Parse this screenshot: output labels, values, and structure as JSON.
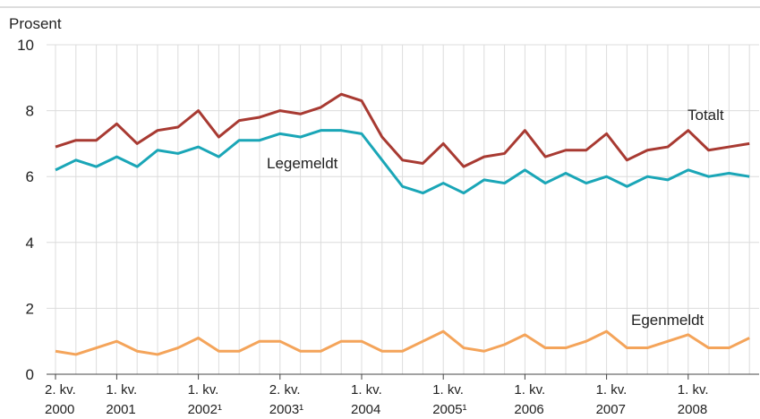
{
  "chart_data": {
    "type": "line",
    "y_label": "Prosent",
    "categories": [
      [
        "2. kv.",
        "2000"
      ],
      null,
      null,
      [
        "1. kv.",
        "2001"
      ],
      null,
      null,
      null,
      [
        "1. kv.",
        "2002¹"
      ],
      null,
      null,
      null,
      [
        "2. kv.",
        "2003¹"
      ],
      null,
      null,
      null,
      [
        "1. kv.",
        "2004"
      ],
      null,
      null,
      null,
      [
        "1. kv.",
        "2005¹"
      ],
      null,
      null,
      null,
      [
        "1. kv.",
        "2006"
      ],
      null,
      null,
      null,
      [
        "1. kv.",
        "2007"
      ],
      null,
      null,
      null,
      [
        "1. kv.",
        "2008"
      ],
      null,
      null,
      null
    ],
    "series": [
      {
        "name": "Totalt",
        "color": "#a83a32",
        "values": [
          6.9,
          7.1,
          7.1,
          7.6,
          7.0,
          7.4,
          7.5,
          8.0,
          7.2,
          7.7,
          7.8,
          8.0,
          7.9,
          8.1,
          8.5,
          8.3,
          7.2,
          6.5,
          6.4,
          7.0,
          6.3,
          6.6,
          6.7,
          7.4,
          6.6,
          6.8,
          6.8,
          7.3,
          6.5,
          6.8,
          6.9,
          7.4,
          6.8,
          6.9,
          7.0
        ]
      },
      {
        "name": "Legemeldt",
        "color": "#1aa6b7",
        "values": [
          6.2,
          6.5,
          6.3,
          6.6,
          6.3,
          6.8,
          6.7,
          6.9,
          6.6,
          7.1,
          7.1,
          7.3,
          7.2,
          7.4,
          7.4,
          7.3,
          6.5,
          5.7,
          5.5,
          5.8,
          5.5,
          5.9,
          5.8,
          6.2,
          5.8,
          6.1,
          5.8,
          6.0,
          5.7,
          6.0,
          5.9,
          6.2,
          6.0,
          6.1,
          6.0
        ]
      },
      {
        "name": "Egenmeldt",
        "color": "#f4a45a",
        "values": [
          0.7,
          0.6,
          0.8,
          1.0,
          0.7,
          0.6,
          0.8,
          1.1,
          0.7,
          0.7,
          1.0,
          1.0,
          0.7,
          0.7,
          1.0,
          1.0,
          0.7,
          0.7,
          1.0,
          1.3,
          0.8,
          0.7,
          0.9,
          1.2,
          0.8,
          0.8,
          1.0,
          1.3,
          0.8,
          0.8,
          1.0,
          1.2,
          0.8,
          0.8,
          1.1
        ]
      }
    ],
    "ylim": [
      0,
      10
    ],
    "yticks": [
      0,
      2,
      4,
      6,
      8,
      10
    ],
    "grid": true
  }
}
